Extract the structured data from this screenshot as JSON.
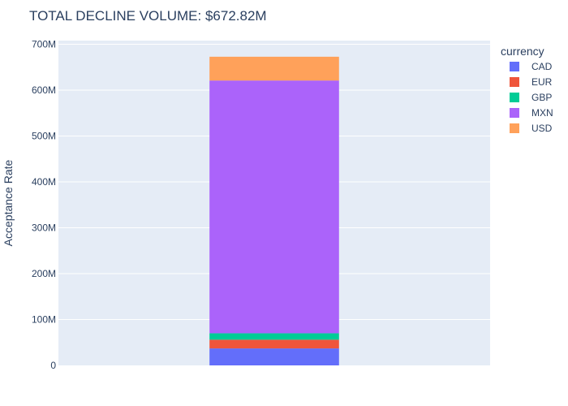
{
  "chart_data": {
    "type": "bar",
    "stacked": true,
    "title": "TOTAL DECLINE VOLUME: $672.82M",
    "xlabel": "",
    "ylabel": "Acceptance Rate",
    "ylim": [
      0,
      708
    ],
    "y_ticks": [
      0,
      100,
      200,
      300,
      400,
      500,
      600,
      700
    ],
    "y_tick_labels": [
      "0",
      "100M",
      "200M",
      "300M",
      "400M",
      "500M",
      "600M",
      "700M"
    ],
    "categories": [
      ""
    ],
    "legend_title": "currency",
    "legend_position": "right",
    "grid": true,
    "series": [
      {
        "name": "CAD",
        "values": [
          37
        ],
        "color": "#636efa"
      },
      {
        "name": "EUR",
        "values": [
          19
        ],
        "color": "#ef553b"
      },
      {
        "name": "GBP",
        "values": [
          14
        ],
        "color": "#00cc96"
      },
      {
        "name": "MXN",
        "values": [
          551
        ],
        "color": "#ab63fa"
      },
      {
        "name": "USD",
        "values": [
          51.82
        ],
        "color": "#ffa15a"
      }
    ]
  }
}
